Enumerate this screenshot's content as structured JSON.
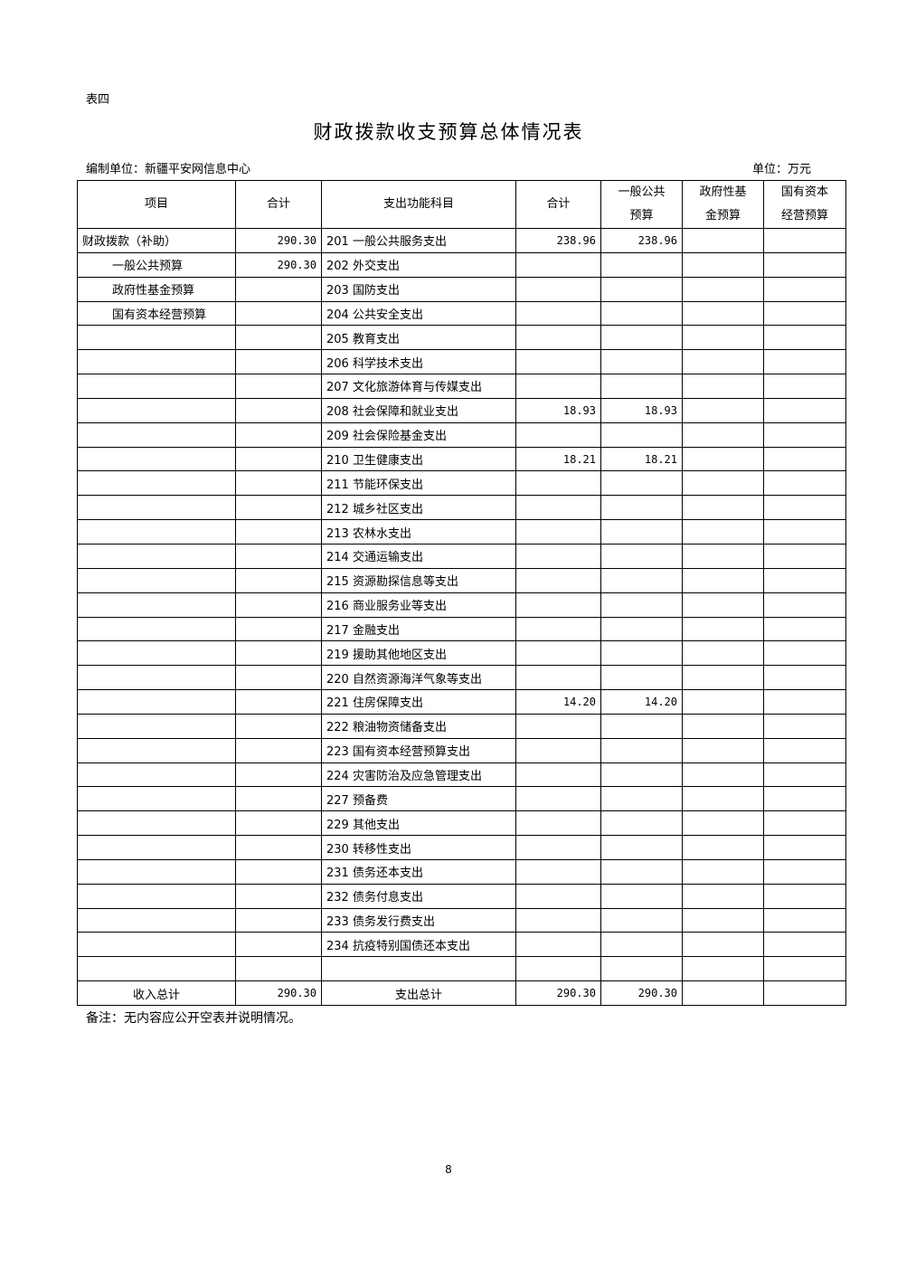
{
  "table_tag": "表四",
  "title": "财政拨款收支预算总体情况表",
  "compiler": "编制单位：新疆平安网信息中心",
  "unit": "单位：万元",
  "headers": [
    "项目",
    "合计",
    "支出功能科目",
    "合计",
    "一般公共预算",
    "政府性基金预算",
    "国有资本经营预算"
  ],
  "header_lines": {
    "col4": [
      "一般公共",
      "预算"
    ],
    "col5": [
      "政府性基",
      "金预算"
    ],
    "col6": [
      "国有资本",
      "经营预算"
    ]
  },
  "rows": [
    [
      "财政拨款（补助）",
      "290.30",
      "201 一般公共服务支出",
      "238.96",
      "238.96",
      "",
      ""
    ],
    [
      "一般公共预算",
      "290.30",
      "202 外交支出",
      "",
      "",
      "",
      ""
    ],
    [
      "政府性基金预算",
      "",
      "203 国防支出",
      "",
      "",
      "",
      ""
    ],
    [
      "国有资本经营预算",
      "",
      "204 公共安全支出",
      "",
      "",
      "",
      ""
    ],
    [
      "",
      "",
      "205 教育支出",
      "",
      "",
      "",
      ""
    ],
    [
      "",
      "",
      "206 科学技术支出",
      "",
      "",
      "",
      ""
    ],
    [
      "",
      "",
      "207 文化旅游体育与传媒支出",
      "",
      "",
      "",
      ""
    ],
    [
      "",
      "",
      "208 社会保障和就业支出",
      "18.93",
      "18.93",
      "",
      ""
    ],
    [
      "",
      "",
      "209 社会保险基金支出",
      "",
      "",
      "",
      ""
    ],
    [
      "",
      "",
      "210 卫生健康支出",
      "18.21",
      "18.21",
      "",
      ""
    ],
    [
      "",
      "",
      "211 节能环保支出",
      "",
      "",
      "",
      ""
    ],
    [
      "",
      "",
      "212 城乡社区支出",
      "",
      "",
      "",
      ""
    ],
    [
      "",
      "",
      "213 农林水支出",
      "",
      "",
      "",
      ""
    ],
    [
      "",
      "",
      "214 交通运输支出",
      "",
      "",
      "",
      ""
    ],
    [
      "",
      "",
      "215 资源勘探信息等支出",
      "",
      "",
      "",
      ""
    ],
    [
      "",
      "",
      "216 商业服务业等支出",
      "",
      "",
      "",
      ""
    ],
    [
      "",
      "",
      "217 金融支出",
      "",
      "",
      "",
      ""
    ],
    [
      "",
      "",
      "219 援助其他地区支出",
      "",
      "",
      "",
      ""
    ],
    [
      "",
      "",
      "220 自然资源海洋气象等支出",
      "",
      "",
      "",
      ""
    ],
    [
      "",
      "",
      "221 住房保障支出",
      "14.20",
      "14.20",
      "",
      ""
    ],
    [
      "",
      "",
      "222 粮油物资储备支出",
      "",
      "",
      "",
      ""
    ],
    [
      "",
      "",
      "223 国有资本经营预算支出",
      "",
      "",
      "",
      ""
    ],
    [
      "",
      "",
      "224 灾害防治及应急管理支出",
      "",
      "",
      "",
      ""
    ],
    [
      "",
      "",
      "227 预备费",
      "",
      "",
      "",
      ""
    ],
    [
      "",
      "",
      "229 其他支出",
      "",
      "",
      "",
      ""
    ],
    [
      "",
      "",
      "230 转移性支出",
      "",
      "",
      "",
      ""
    ],
    [
      "",
      "",
      "231 债务还本支出",
      "",
      "",
      "",
      ""
    ],
    [
      "",
      "",
      "232 债务付息支出",
      "",
      "",
      "",
      ""
    ],
    [
      "",
      "",
      "233 债务发行费支出",
      "",
      "",
      "",
      ""
    ],
    [
      "",
      "",
      "234 抗疫特别国债还本支出",
      "",
      "",
      "",
      ""
    ],
    [
      "",
      "",
      "",
      "",
      "",
      "",
      ""
    ]
  ],
  "totals": [
    "收入总计",
    "290.30",
    "支出总计",
    "290.30",
    "290.30",
    "",
    ""
  ],
  "note": "备注：无内容应公开空表并说明情况。",
  "page_number": "8"
}
